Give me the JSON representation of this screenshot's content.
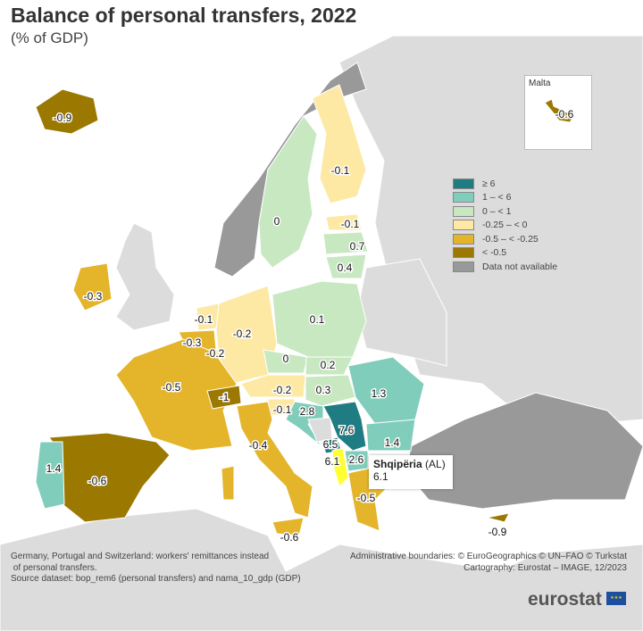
{
  "title": "Balance of personal transfers, 2022",
  "subtitle": "(% of GDP)",
  "legend": [
    {
      "label": "≥ 6",
      "color": "#1e7c82"
    },
    {
      "label": "1 – < 6",
      "color": "#7fcdba"
    },
    {
      "label": "0 – < 1",
      "color": "#c8e8c2"
    },
    {
      "label": "-0.25 – < 0",
      "color": "#fde9a4"
    },
    {
      "label": "-0.5 – < -0.25",
      "color": "#e4b52a"
    },
    {
      "label": "< -0.5",
      "color": "#9b7800"
    },
    {
      "label": "Data not available",
      "color": "#999999"
    }
  ],
  "countries": {
    "IS": "-0.9",
    "SE": "0",
    "FI": "-0.1",
    "EE": "-0.1",
    "LV": "0.7",
    "LT": "0.4",
    "IE": "-0.3",
    "PL": "0.1",
    "NL": "-0.1",
    "BE": "-0.3",
    "LU": "-0.2",
    "DE": "-0.2",
    "CZ": "0",
    "SK": "0.2",
    "HU": "0.3",
    "RO": "1.3",
    "AT": "-0.2",
    "SI": "-0.1",
    "HR": "2.8",
    "RS": "7.6",
    "ME": "6.5",
    "AL": "6.1",
    "MK": "2.6",
    "BG": "1.4",
    "FR": "-0.5",
    "CH": "-1",
    "IT": "-0.4",
    "PT": "1.4",
    "ES": "-0.6",
    "EL": "-0.5",
    "MT": "-0.6",
    "CY": "-0.9"
  },
  "inset": {
    "title": "Malta",
    "value": "-0.6"
  },
  "tooltip": {
    "name": "Shqipëria",
    "code": "(AL)",
    "value": "6.1"
  },
  "footnotes": {
    "left": [
      "Germany, Portugal and Switzerland: workers' remittances instead",
      " of personal transfers.",
      "Source dataset: bop_rem6 (personal transfers) and nama_10_gdp (GDP)"
    ],
    "right": [
      "Administrative boundaries: © EuroGeographics © UN–FAO © Turkstat",
      "Cartography: Eurostat – IMAGE, 12/2023"
    ]
  },
  "logo": "eurostat"
}
